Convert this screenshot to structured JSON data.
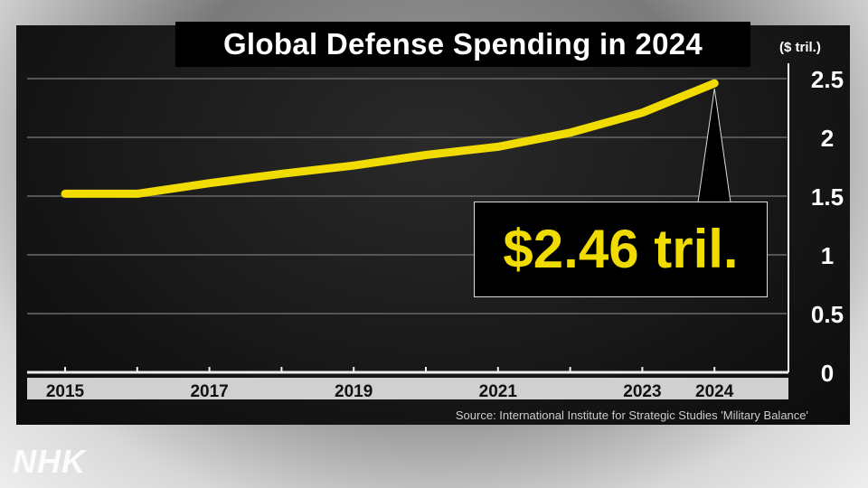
{
  "chart_data": {
    "type": "line",
    "title": "Global Defense Spending in 2024",
    "ylabel": "($ tril.)",
    "x": [
      2015,
      2016,
      2017,
      2018,
      2019,
      2020,
      2021,
      2022,
      2023,
      2024
    ],
    "x_tick_labels": [
      "2015",
      "2017",
      "2019",
      "2021",
      "2023",
      "2024"
    ],
    "values": [
      1.52,
      1.52,
      1.61,
      1.69,
      1.76,
      1.85,
      1.92,
      2.04,
      2.21,
      2.46
    ],
    "ylim": [
      0,
      2.5
    ],
    "y_ticks": [
      "0",
      "0.5",
      "1",
      "1.5",
      "2",
      "2.5"
    ],
    "grid": true,
    "annotation": "$2.46 tril.",
    "source": "Source: International Institute for Strategic Studies 'Military Balance'",
    "colors": {
      "line": "#f0dc00",
      "background": "#141414"
    }
  },
  "logo": "NHK"
}
